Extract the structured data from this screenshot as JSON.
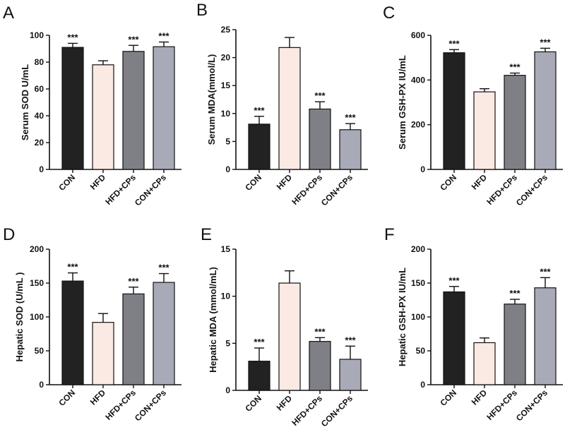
{
  "chart_data": [
    {
      "panel": "A",
      "type": "bar",
      "ylabel": "Serum SOD U/mL",
      "categories": [
        "CON",
        "HFD",
        "HFD+CPs",
        "CON+CPs"
      ],
      "values": [
        91,
        78,
        88,
        91.5
      ],
      "errors": [
        3,
        3,
        4.5,
        3.5
      ],
      "significance": [
        "***",
        "",
        "***",
        "***"
      ],
      "ylim": [
        0,
        100
      ],
      "yticks": [
        0,
        20,
        40,
        60,
        80,
        100
      ]
    },
    {
      "panel": "B",
      "type": "bar",
      "ylabel": "Serum MDA(mmol/L)",
      "categories": [
        "CON",
        "HFD",
        "HFD+CPs",
        "CON+CPs"
      ],
      "values": [
        8.1,
        21.8,
        10.8,
        7.1
      ],
      "errors": [
        1.4,
        1.8,
        1.3,
        1.1
      ],
      "significance": [
        "***",
        "",
        "***",
        "***"
      ],
      "ylim": [
        0,
        25
      ],
      "yticks": [
        0,
        5,
        10,
        15,
        20,
        25
      ]
    },
    {
      "panel": "C",
      "type": "bar",
      "ylabel": "Serum GSH-PX IU/mL",
      "categories": [
        "CON",
        "HFD",
        "HFD+CPs",
        "CON+CPs"
      ],
      "values": [
        522,
        347,
        421,
        526
      ],
      "errors": [
        14,
        14,
        10,
        16
      ],
      "significance": [
        "***",
        "",
        "***",
        "***"
      ],
      "ylim": [
        0,
        600
      ],
      "yticks": [
        0,
        200,
        400,
        600
      ]
    },
    {
      "panel": "D",
      "type": "bar",
      "ylabel": "Hepatic SOD (U/mL )",
      "categories": [
        "CON",
        "HFD",
        "HFD+CPs",
        "CON+CPs"
      ],
      "values": [
        153,
        92,
        134,
        151
      ],
      "errors": [
        12,
        13,
        10,
        13
      ],
      "significance": [
        "***",
        "",
        "***",
        "***"
      ],
      "ylim": [
        0,
        200
      ],
      "yticks": [
        0,
        50,
        100,
        150,
        200
      ]
    },
    {
      "panel": "E",
      "type": "bar",
      "ylabel": "Hepatic MDA (mmol/mL)",
      "categories": [
        "CON",
        "HFD",
        "HFD+CPs",
        "CON+CPs"
      ],
      "values": [
        3.1,
        11.4,
        5.2,
        3.3
      ],
      "errors": [
        1.4,
        1.3,
        0.4,
        1.4
      ],
      "significance": [
        "***",
        "",
        "***",
        "***"
      ],
      "ylim": [
        0,
        15
      ],
      "yticks": [
        0,
        5,
        10,
        15
      ]
    },
    {
      "panel": "F",
      "type": "bar",
      "ylabel": "Hepatic GSH-PX IU/mL",
      "categories": [
        "CON",
        "HFD",
        "HFD+CPs",
        "CON+CPs"
      ],
      "values": [
        137,
        62,
        119,
        143
      ],
      "errors": [
        8,
        7,
        7,
        15
      ],
      "significance": [
        "***",
        "",
        "***",
        "***"
      ],
      "ylim": [
        0,
        200
      ],
      "yticks": [
        0,
        50,
        100,
        150,
        200
      ]
    }
  ],
  "colors": {
    "bars": [
      "#222222",
      "#fbe9e4",
      "#7e8085",
      "#a9aab7"
    ],
    "stroke": "#111111"
  }
}
